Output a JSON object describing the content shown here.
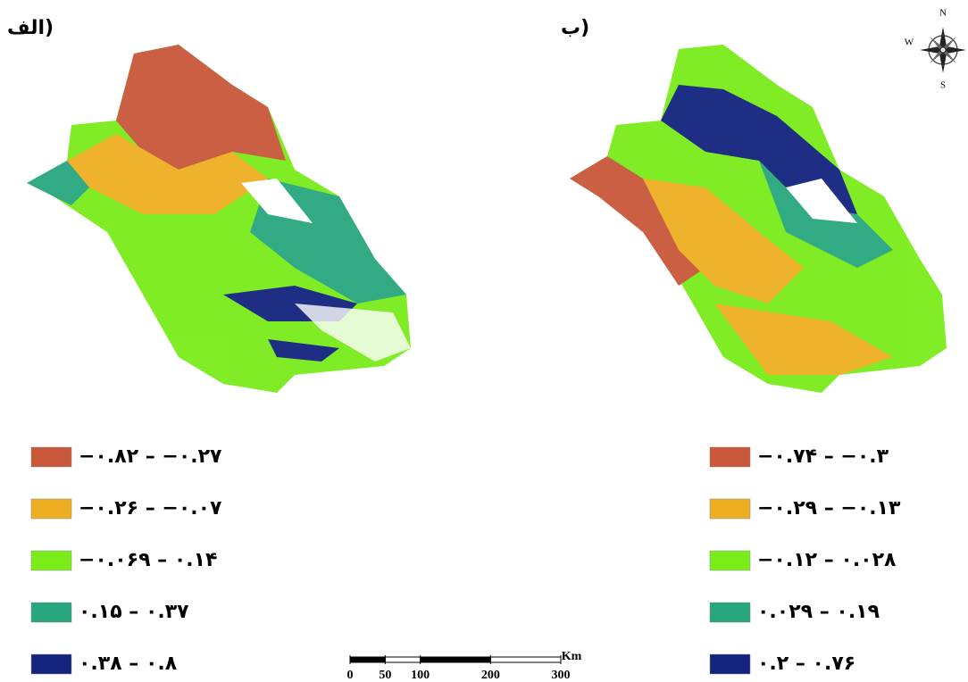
{
  "panels": [
    {
      "label": "الف)",
      "legend": [
        {
          "color": "#c9573a",
          "text": "−۰.۸۲ – −۰.۲۷"
        },
        {
          "color": "#eeae22",
          "text": "−۰.۲۶ – −۰.۰۷"
        },
        {
          "color": "#7aec1a",
          "text": "−۰.۰۶۹ – ۰.۱۴"
        },
        {
          "color": "#28a67d",
          "text": "۰.۱۵ – ۰.۳۷"
        },
        {
          "color": "#13237e",
          "text": "۰.۳۸ – ۰.۸"
        }
      ]
    },
    {
      "label": "ب)",
      "legend": [
        {
          "color": "#c9573a",
          "text": "−۰.۷۴ – −۰.۳"
        },
        {
          "color": "#eeae22",
          "text": "−۰.۲۹ – −۰.۱۳"
        },
        {
          "color": "#7aec1a",
          "text": "−۰.۱۲ – ۰.۰۲۸"
        },
        {
          "color": "#28a67d",
          "text": "۰.۰۲۹ – ۰.۱۹"
        },
        {
          "color": "#13237e",
          "text": "۰.۲ – ۰.۷۶"
        }
      ]
    }
  ],
  "compass": {
    "north": "N",
    "west": "W",
    "south": "S"
  },
  "scale_bar": {
    "ticks": [
      0,
      50,
      100,
      200,
      300
    ],
    "unit": "Km"
  }
}
